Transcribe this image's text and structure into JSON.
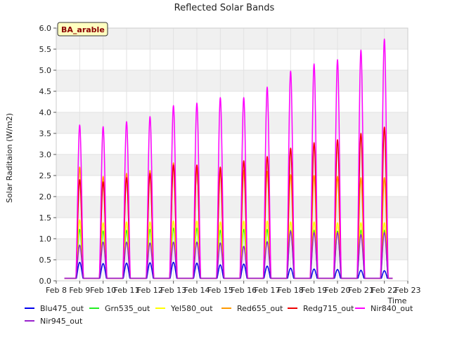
{
  "chart_data": {
    "type": "line",
    "title": "Reflected Solar Bands",
    "xlabel": "Time",
    "ylabel": "Solar Raditaion (W/m2)",
    "site_label": "BA_arable",
    "xlim": [
      8,
      23
    ],
    "ylim": [
      0,
      6.0
    ],
    "x_ticks": [
      8,
      9,
      10,
      11,
      12,
      13,
      14,
      15,
      16,
      17,
      18,
      19,
      20,
      21,
      22,
      23
    ],
    "x_tick_labels": [
      "Feb 8",
      "Feb 9",
      "Feb 10",
      "Feb 11",
      "Feb 12",
      "Feb 13",
      "Feb 14",
      "Feb 15",
      "Feb 16",
      "Feb 17",
      "Feb 18",
      "Feb 19",
      "Feb 20",
      "Feb 21",
      "Feb 22",
      "Feb 23"
    ],
    "y_ticks": [
      0.0,
      0.5,
      1.0,
      1.5,
      2.0,
      2.5,
      3.0,
      3.5,
      4.0,
      4.5,
      5.0,
      5.5,
      6.0
    ],
    "y_tick_labels": [
      "0.0",
      "0.5",
      "1.0",
      "1.5",
      "2.0",
      "2.5",
      "3.0",
      "3.5",
      "4.0",
      "4.5",
      "5.0",
      "5.5",
      "6.0"
    ],
    "x_range_start": 8.35,
    "x_range_end": 22.35,
    "day_centers": [
      9.0,
      10.0,
      11.0,
      12.0,
      13.0,
      14.0,
      15.0,
      16.0,
      17.0,
      18.0,
      19.0,
      20.0,
      21.0,
      22.0
    ],
    "day_half_width": 0.17,
    "night_value": 0.06,
    "series": [
      {
        "name": "Blu475_out",
        "color": "#0000ee",
        "daily_peaks": [
          0.44,
          0.41,
          0.42,
          0.43,
          0.44,
          0.42,
          0.38,
          0.4,
          0.35,
          0.3,
          0.28,
          0.27,
          0.25,
          0.24
        ]
      },
      {
        "name": "Grn535_out",
        "color": "#22ee22",
        "daily_peaks": [
          1.22,
          1.18,
          1.2,
          1.22,
          1.25,
          1.25,
          1.2,
          1.22,
          1.22,
          1.2,
          1.2,
          1.18,
          1.2,
          1.2
        ]
      },
      {
        "name": "Yel580_out",
        "color": "#ffff00",
        "daily_peaks": [
          1.45,
          1.38,
          1.4,
          1.4,
          1.42,
          1.42,
          1.4,
          1.42,
          1.42,
          1.4,
          1.4,
          1.38,
          1.38,
          1.38
        ]
      },
      {
        "name": "Red655_out",
        "color": "#ff9900",
        "daily_peaks": [
          2.7,
          2.48,
          2.55,
          2.62,
          2.8,
          2.72,
          2.6,
          2.62,
          2.6,
          2.52,
          2.5,
          2.48,
          2.45,
          2.45
        ]
      },
      {
        "name": "Redg715_out",
        "color": "#ee0000",
        "daily_peaks": [
          2.4,
          2.35,
          2.45,
          2.55,
          2.75,
          2.75,
          2.7,
          2.85,
          2.95,
          3.15,
          3.28,
          3.35,
          3.5,
          3.65
        ]
      },
      {
        "name": "Nir840_out",
        "color": "#ff00ff",
        "daily_peaks": [
          3.7,
          3.66,
          3.78,
          3.9,
          4.16,
          4.22,
          4.35,
          4.35,
          4.6,
          4.98,
          5.15,
          5.25,
          5.48,
          5.74
        ]
      },
      {
        "name": "Nir945_out",
        "color": "#9922cc",
        "daily_peaks": [
          0.85,
          0.92,
          0.92,
          0.9,
          0.92,
          0.92,
          0.9,
          0.82,
          0.93,
          1.18,
          1.15,
          1.15,
          1.1,
          1.15
        ]
      }
    ]
  }
}
